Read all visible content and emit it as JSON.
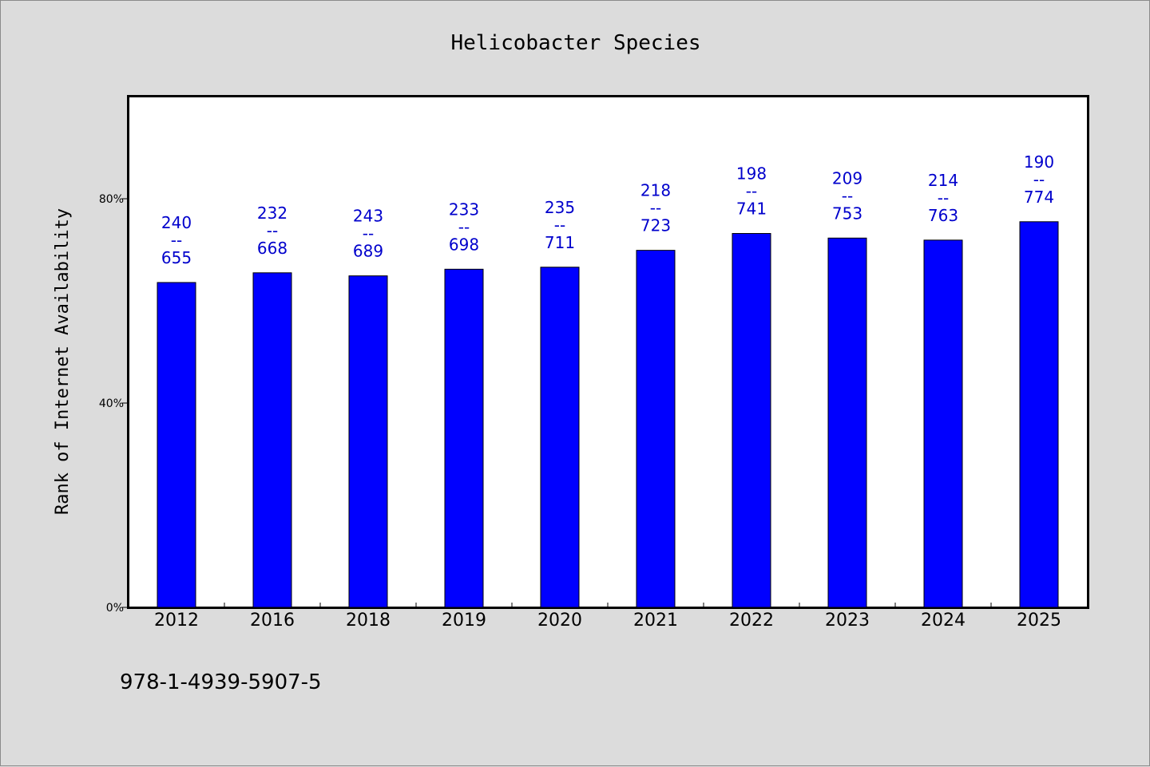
{
  "chart_data": {
    "type": "bar",
    "title": "Helicobacter Species",
    "xlabel": "",
    "ylabel": "Rank of Internet Availability",
    "categories": [
      "2012",
      "2016",
      "2018",
      "2019",
      "2020",
      "2021",
      "2022",
      "2023",
      "2024",
      "2025"
    ],
    "values": [
      63.6,
      65.5,
      64.9,
      66.2,
      66.6,
      69.9,
      73.2,
      72.3,
      71.9,
      75.5
    ],
    "data_labels": [
      {
        "top": "240",
        "sep": "--",
        "bottom": "655"
      },
      {
        "top": "232",
        "sep": "--",
        "bottom": "668"
      },
      {
        "top": "243",
        "sep": "--",
        "bottom": "689"
      },
      {
        "top": "233",
        "sep": "--",
        "bottom": "698"
      },
      {
        "top": "235",
        "sep": "--",
        "bottom": "711"
      },
      {
        "top": "218",
        "sep": "--",
        "bottom": "723"
      },
      {
        "top": "198",
        "sep": "--",
        "bottom": "741"
      },
      {
        "top": "209",
        "sep": "--",
        "bottom": "753"
      },
      {
        "top": "214",
        "sep": "--",
        "bottom": "763"
      },
      {
        "top": "190",
        "sep": "--",
        "bottom": "774"
      }
    ],
    "ylim": [
      0,
      100
    ],
    "yticks": [
      0,
      40,
      80
    ],
    "ytick_labels": [
      "0%",
      "40%",
      "80%"
    ],
    "bar_color": "#0000ff",
    "label_color": "#0000cc",
    "grid": false,
    "legend": "none"
  },
  "footer": {
    "isbn": "978-1-4939-5907-5"
  }
}
